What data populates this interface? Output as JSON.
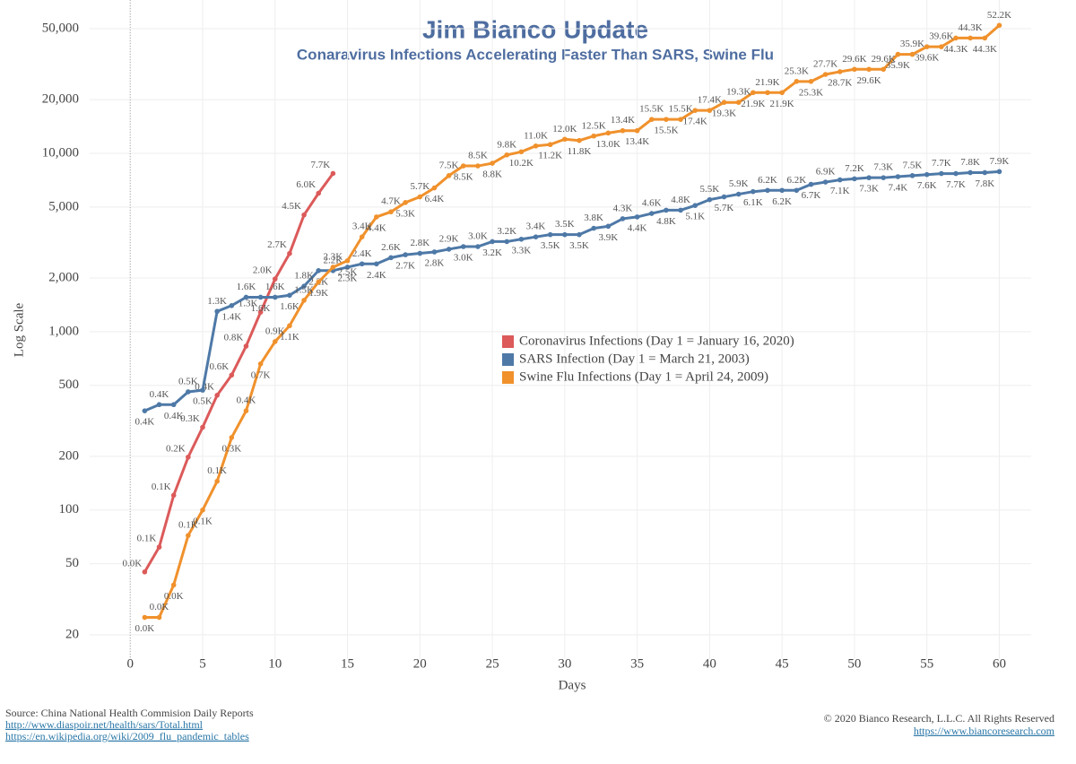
{
  "chart_data": {
    "type": "line",
    "title": "Jim Bianco Update",
    "subtitle": "Conaravirus Infections Accelerating Faster Than SARS, Swine Flu",
    "xlabel": "Days",
    "ylabel": "Log Scale",
    "log_y": true,
    "grid": true,
    "xlim": [
      -2.8,
      62.2
    ],
    "xticks": [
      0,
      5,
      10,
      15,
      20,
      25,
      30,
      35,
      40,
      45,
      50,
      55,
      60
    ],
    "ylim": [
      14.6,
      72400
    ],
    "yticks": [
      20,
      50,
      100,
      200,
      500,
      {
        "value": 1000,
        "label": "1,000"
      },
      {
        "value": 2000,
        "label": "2,000"
      },
      {
        "value": 5000,
        "label": "5,000"
      },
      {
        "value": 10000,
        "label": "10,000"
      },
      {
        "value": 20000,
        "label": "20,000"
      },
      {
        "value": 50000,
        "label": "50,000"
      }
    ],
    "series": [
      {
        "name": "Coronavirus Infections (Day 1 = January 16, 2020)",
        "color": "#dc5a5a",
        "x": [
          1,
          2,
          3,
          4,
          5,
          6,
          7,
          8,
          9,
          10,
          11,
          12,
          13,
          14
        ],
        "values": [
          45,
          62,
          121,
          198,
          291,
          440,
          571,
          830,
          1287,
          1975,
          2744,
          4515,
          5974,
          7711
        ],
        "value_labels": [
          "0.0K",
          "0.1K",
          "0.1K",
          "0.2K",
          "0.3K",
          "0.4K",
          "0.6K",
          "0.8K",
          "1.3K",
          "2.0K",
          "2.7K",
          "4.5K",
          "6.0K",
          "7.7K"
        ]
      },
      {
        "name": "SARS Infection (Day 1 = March 21, 2003)",
        "color": "#4e79a7",
        "x": [
          1,
          2,
          3,
          4,
          5,
          6,
          7,
          8,
          9,
          10,
          11,
          12,
          13,
          14,
          15,
          16,
          17,
          18,
          19,
          20,
          21,
          22,
          23,
          24,
          25,
          26,
          27,
          28,
          29,
          30,
          31,
          32,
          33,
          34,
          35,
          36,
          37,
          38,
          39,
          40,
          41,
          42,
          43,
          44,
          45,
          46,
          47,
          48,
          49,
          50,
          51,
          52,
          53,
          54,
          55,
          56,
          57,
          58,
          59,
          60
        ],
        "values": [
          360,
          390,
          390,
          460,
          470,
          1300,
          1400,
          1560,
          1560,
          1560,
          1600,
          1800,
          2200,
          2200,
          2300,
          2400,
          2400,
          2600,
          2700,
          2750,
          2800,
          2900,
          3000,
          3000,
          3200,
          3200,
          3300,
          3400,
          3500,
          3500,
          3500,
          3800,
          3900,
          4300,
          4400,
          4600,
          4800,
          4800,
          5100,
          5500,
          5700,
          5900,
          6100,
          6200,
          6200,
          6200,
          6700,
          6900,
          7100,
          7200,
          7300,
          7300,
          7400,
          7500,
          7600,
          7700,
          7700,
          7800,
          7800,
          7900
        ],
        "value_labels": [
          "0.4K",
          "0.4K",
          "0.4K",
          "0.5K",
          "0.5K",
          "1.3K",
          "1.4K",
          "1.6K",
          "1.6K",
          "1.6K",
          "1.6K",
          "1.8K",
          "2.2K",
          "2.2K",
          "2.3K",
          "2.4K",
          "2.4K",
          "2.6K",
          "2.7K",
          "2.8K",
          "2.8K",
          "2.9K",
          "3.0K",
          "3.0K",
          "3.2K",
          "3.2K",
          "3.3K",
          "3.4K",
          "3.5K",
          "3.5K",
          "3.5K",
          "3.8K",
          "3.9K",
          "4.3K",
          "4.4K",
          "4.6K",
          "4.8K",
          "4.8K",
          "5.1K",
          "5.5K",
          "5.7K",
          "5.9K",
          "6.1K",
          "6.2K",
          "6.2K",
          "6.2K",
          "6.7K",
          "6.9K",
          "7.1K",
          "7.2K",
          "7.3K",
          "7.3K",
          "7.4K",
          "7.5K",
          "7.6K",
          "7.7K",
          "7.7K",
          "7.8K",
          "7.8K",
          "7.9K"
        ]
      },
      {
        "name": "Swine Flu Infections (Day 1 = April 24, 2009)",
        "color": "#f0912c",
        "x": [
          1,
          2,
          3,
          4,
          5,
          6,
          7,
          8,
          9,
          10,
          11,
          12,
          13,
          14,
          15,
          16,
          17,
          18,
          19,
          20,
          21,
          22,
          23,
          24,
          25,
          26,
          27,
          28,
          29,
          30,
          31,
          32,
          33,
          34,
          35,
          36,
          37,
          38,
          39,
          40,
          41,
          42,
          43,
          44,
          45,
          46,
          47,
          48,
          49,
          50,
          51,
          52,
          53,
          54,
          55,
          56,
          57,
          58,
          59,
          60
        ],
        "values": [
          25,
          25,
          38,
          72,
          100,
          145,
          255,
          360,
          660,
          880,
          1080,
          1500,
          1900,
          2300,
          2500,
          3400,
          4400,
          4700,
          5300,
          5700,
          6400,
          7500,
          8500,
          8500,
          8800,
          9800,
          10200,
          11000,
          11200,
          12000,
          11800,
          12500,
          13000,
          13400,
          13400,
          15500,
          15500,
          15500,
          17400,
          17400,
          19300,
          19300,
          21900,
          21900,
          21900,
          25300,
          25300,
          27700,
          28700,
          29600,
          29600,
          29600,
          35900,
          35900,
          39600,
          39600,
          44300,
          44300,
          44300,
          52200
        ],
        "value_labels": [
          "0.0K",
          "0.0K",
          "0.0K",
          "0.1K",
          "0.1K",
          "0.1K",
          "0.3K",
          "0.4K",
          "0.7K",
          "0.9K",
          "1.1K",
          "1.5K",
          "1.9K",
          "2.3K",
          "2.5K",
          "3.4K",
          "4.4K",
          "4.7K",
          "5.3K",
          "5.7K",
          "6.4K",
          "7.5K",
          "8.5K",
          "8.5K",
          "8.8K",
          "9.8K",
          "10.2K",
          "11.0K",
          "11.2K",
          "12.0K",
          "11.8K",
          "12.5K",
          "13.0K",
          "13.4K",
          "13.4K",
          "15.5K",
          "15.5K",
          "15.5K",
          "17.4K",
          "17.4K",
          "19.3K",
          "19.3K",
          "21.9K",
          "21.9K",
          "21.9K",
          "25.3K",
          "25.3K",
          "27.7K",
          "28.7K",
          "29.6K",
          "29.6K",
          "29.6K",
          "35.9K",
          "35.9K",
          "39.6K",
          "39.6K",
          "44.3K",
          "44.3K",
          "44.3K",
          "52.2K"
        ]
      }
    ]
  },
  "footer": {
    "source": "Source: China National Health Commision Daily Reports",
    "link1": "http://www.diaspoir.net/health/sars/Total.html",
    "link2": "https://en.wikipedia.org/wiki/2009_flu_pandemic_tables",
    "copyright": "© 2020 Bianco Research, L.L.C. All Rights Reserved",
    "website": "https://www.biancoresearch.com"
  }
}
